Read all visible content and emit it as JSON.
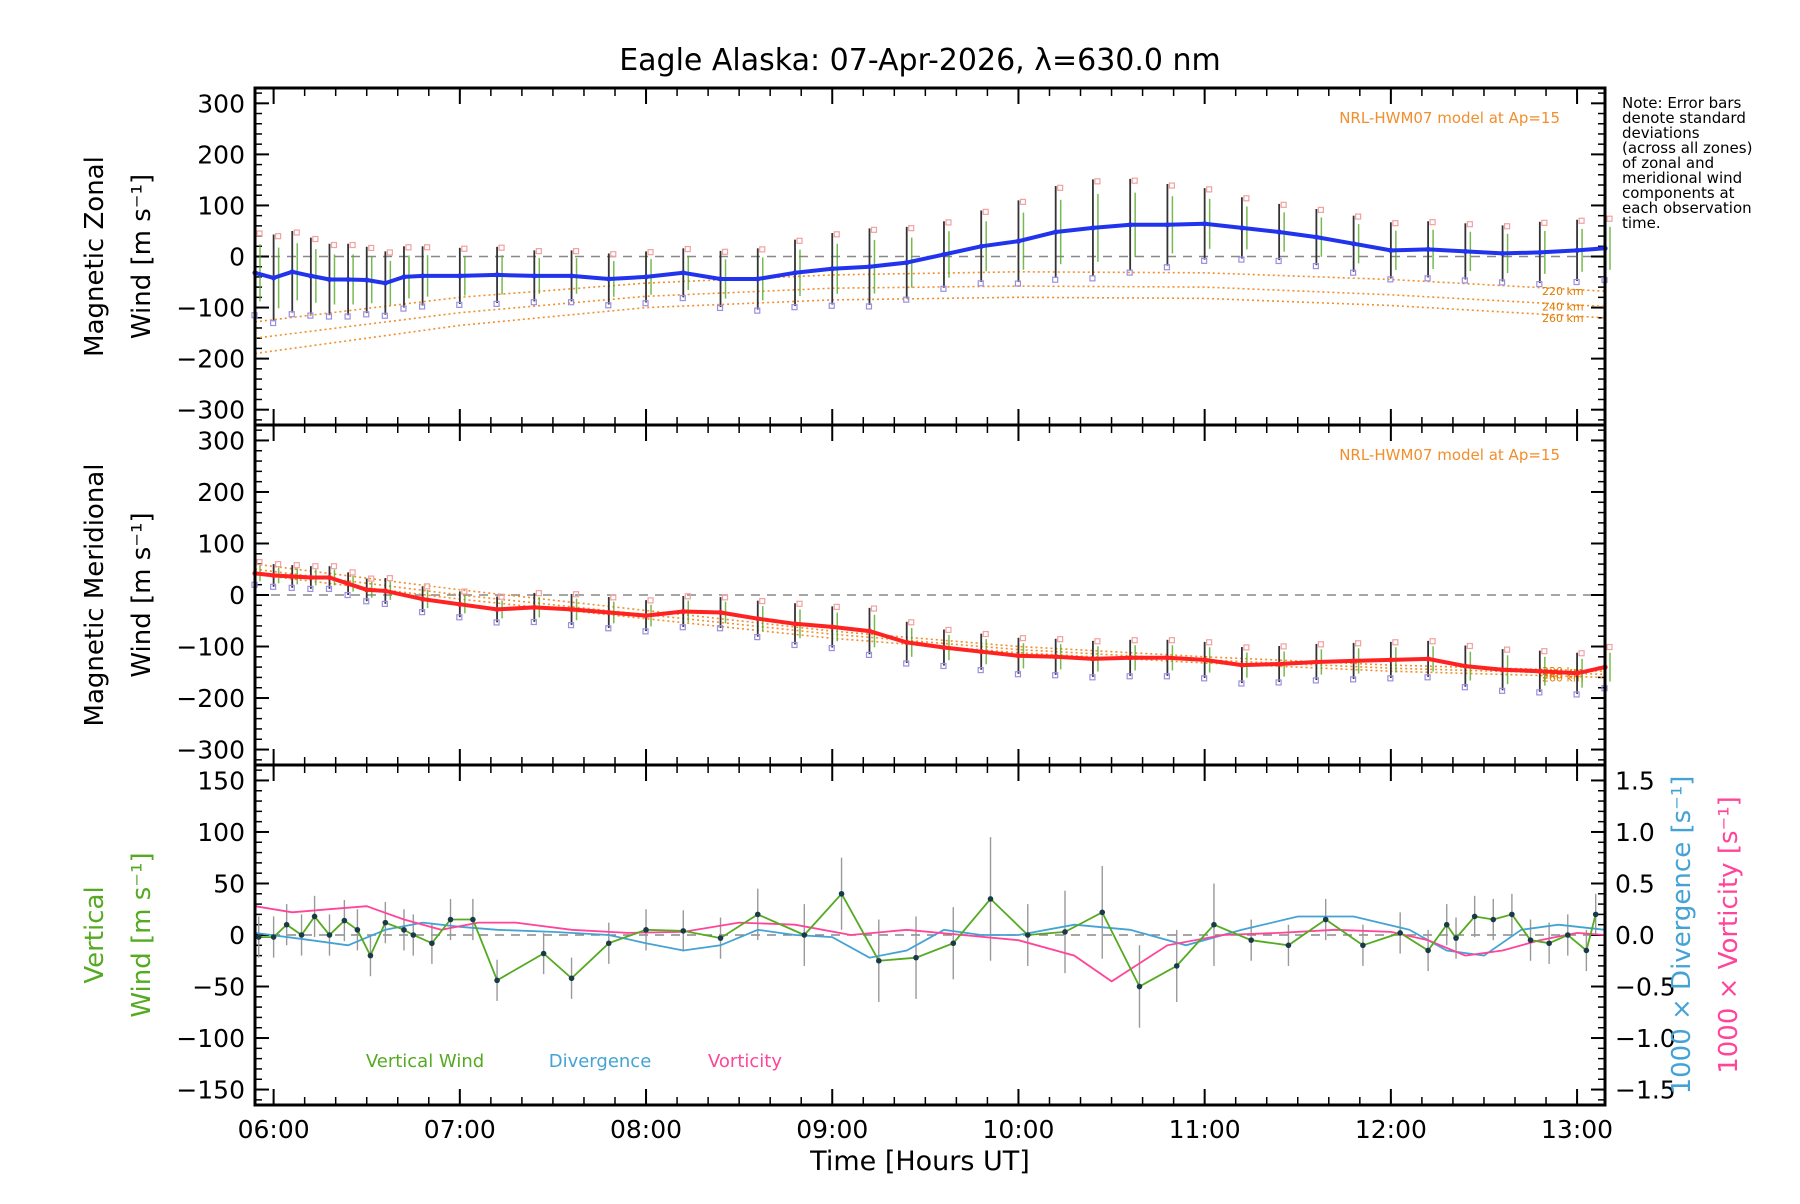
{
  "title": "Eagle Alaska: 07-Apr-2026, λ=630.0 nm",
  "note_lines": [
    "Note: Error bars",
    "denote standard",
    "deviations",
    "(across all zones)",
    "of zonal and",
    "meridional wind",
    "components at",
    "each observation",
    "time."
  ],
  "colors": {
    "zonal": "#2233ee",
    "meridional": "#ff2222",
    "vertical": "#55aa22",
    "divergence": "#44a3d4",
    "vorticity": "#ff4499",
    "model": "#f28e2b",
    "errorbar": "#333333",
    "grid": "#888888"
  },
  "chart_data": {
    "type": "line",
    "xlabel": "Time [Hours UT]",
    "xlim": [
      5.9,
      13.15
    ],
    "xticks": [
      6,
      7,
      8,
      9,
      10,
      11,
      12,
      13
    ],
    "xtick_labels": [
      "06:00",
      "07:00",
      "08:00",
      "09:00",
      "10:00",
      "11:00",
      "12:00",
      "13:00"
    ],
    "panels": [
      {
        "id": "zonal",
        "ylabel_top": "Magnetic Zonal",
        "ylabel_bottom": "Wind [m s⁻¹]",
        "ylim": [
          -330,
          330
        ],
        "yticks": [
          -300,
          -200,
          -100,
          0,
          100,
          200,
          300
        ],
        "ytick_labels": [
          "−300",
          "−200",
          "−100",
          "0",
          "100",
          "200",
          "300"
        ],
        "model_note": "NRL-HWM07 model at Ap=15",
        "model_altitudes": [
          "220 km",
          "240 km",
          "260 km"
        ],
        "series": [
          {
            "name": "Zonal Wind",
            "x": [
              5.9,
              6.0,
              6.1,
              6.2,
              6.3,
              6.4,
              6.5,
              6.6,
              6.7,
              6.8,
              7.0,
              7.2,
              7.4,
              7.6,
              7.8,
              8.0,
              8.2,
              8.4,
              8.6,
              8.8,
              9.0,
              9.2,
              9.4,
              9.6,
              9.8,
              10.0,
              10.2,
              10.4,
              10.6,
              10.8,
              11.0,
              11.2,
              11.4,
              11.6,
              11.8,
              12.0,
              12.2,
              12.4,
              12.6,
              12.8,
              13.0,
              13.15
            ],
            "y": [
              -32,
              -42,
              -30,
              -38,
              -45,
              -45,
              -46,
              -52,
              -40,
              -38,
              -38,
              -36,
              -38,
              -38,
              -44,
              -40,
              -32,
              -44,
              -44,
              -32,
              -24,
              -20,
              -12,
              4,
              20,
              30,
              48,
              56,
              62,
              62,
              64,
              56,
              48,
              38,
              25,
              12,
              14,
              10,
              6,
              8,
              12,
              16
            ],
            "sd": [
              80,
              85,
              80,
              75,
              70,
              70,
              65,
              62,
              60,
              58,
              55,
              55,
              50,
              50,
              50,
              50,
              48,
              55,
              60,
              65,
              70,
              75,
              70,
              65,
              70,
              80,
              90,
              95,
              90,
              80,
              70,
              60,
              55,
              55,
              55,
              55,
              55,
              55,
              55,
              60,
              60,
              60
            ]
          }
        ],
        "models": [
          {
            "name": "220 km",
            "x": [
              5.9,
              7.0,
              8.0,
              9.0,
              10.0,
              11.0,
              12.0,
              13.15
            ],
            "y": [
              -128,
              -80,
              -52,
              -36,
              -30,
              -32,
              -45,
              -68
            ]
          },
          {
            "name": "240 km",
            "x": [
              5.9,
              7.0,
              8.0,
              9.0,
              10.0,
              11.0,
              12.0,
              13.15
            ],
            "y": [
              -160,
              -110,
              -78,
              -62,
              -58,
              -60,
              -75,
              -98
            ]
          },
          {
            "name": "260 km",
            "x": [
              5.9,
              7.0,
              8.0,
              9.0,
              10.0,
              11.0,
              12.0,
              13.15
            ],
            "y": [
              -190,
              -135,
              -100,
              -85,
              -80,
              -82,
              -96,
              -120
            ]
          }
        ]
      },
      {
        "id": "meridional",
        "ylabel_top": "Magnetic Meridional",
        "ylabel_bottom": "Wind [m s⁻¹]",
        "ylim": [
          -330,
          330
        ],
        "yticks": [
          -300,
          -200,
          -100,
          0,
          100,
          200,
          300
        ],
        "ytick_labels": [
          "−300",
          "−200",
          "−100",
          "0",
          "100",
          "200",
          "300"
        ],
        "model_note": "NRL-HWM07 model at Ap=15",
        "model_altitudes": [
          "220 km",
          "240 km",
          "260 km"
        ],
        "series": [
          {
            "name": "Meridional Wind",
            "x": [
              5.9,
              6.0,
              6.1,
              6.2,
              6.3,
              6.4,
              6.5,
              6.6,
              6.8,
              7.0,
              7.2,
              7.4,
              7.6,
              7.8,
              8.0,
              8.2,
              8.4,
              8.6,
              8.8,
              9.0,
              9.2,
              9.4,
              9.6,
              9.8,
              10.0,
              10.2,
              10.4,
              10.6,
              10.8,
              11.0,
              11.2,
              11.4,
              11.6,
              11.8,
              12.0,
              12.2,
              12.4,
              12.6,
              12.8,
              13.0,
              13.15
            ],
            "y": [
              42,
              38,
              36,
              34,
              34,
              22,
              10,
              8,
              -8,
              -18,
              -28,
              -24,
              -28,
              -34,
              -40,
              -32,
              -34,
              -46,
              -56,
              -62,
              -70,
              -92,
              -102,
              -110,
              -118,
              -120,
              -124,
              -122,
              -122,
              -126,
              -136,
              -134,
              -130,
              -128,
              -126,
              -124,
              -138,
              -145,
              -148,
              -152,
              -140
            ],
            "sd": [
              22,
              22,
              22,
              22,
              22,
              22,
              22,
              25,
              25,
              25,
              25,
              28,
              30,
              30,
              30,
              30,
              30,
              35,
              40,
              40,
              45,
              40,
              35,
              35,
              35,
              35,
              35,
              35,
              35,
              35,
              35,
              35,
              35,
              35,
              35,
              35,
              40,
              40,
              40,
              40,
              40
            ]
          }
        ],
        "models": [
          {
            "name": "220 km",
            "x": [
              5.9,
              7.0,
              8.0,
              9.0,
              10.0,
              11.0,
              12.0,
              13.15
            ],
            "y": [
              60,
              10,
              -30,
              -70,
              -100,
              -120,
              -136,
              -148
            ]
          },
          {
            "name": "240 km",
            "x": [
              5.9,
              7.0,
              8.0,
              9.0,
              10.0,
              11.0,
              12.0,
              13.15
            ],
            "y": [
              50,
              0,
              -38,
              -76,
              -106,
              -126,
              -142,
              -154
            ]
          },
          {
            "name": "260 km",
            "x": [
              5.9,
              7.0,
              8.0,
              9.0,
              10.0,
              11.0,
              12.0,
              13.15
            ],
            "y": [
              40,
              -8,
              -46,
              -84,
              -112,
              -132,
              -148,
              -160
            ]
          }
        ]
      },
      {
        "id": "vertical",
        "ylabel_top": "Vertical",
        "ylabel_bottom": "Wind [m s⁻¹]",
        "ylim": [
          -165,
          165
        ],
        "yticks": [
          -150,
          -100,
          -50,
          0,
          50,
          100,
          150
        ],
        "ytick_labels": [
          "−150",
          "−100",
          "−50",
          "0",
          "50",
          "100",
          "150"
        ],
        "y2label_divergence": "1000 × Divergence [s⁻¹]",
        "y2label_vorticity": "1000 × Vorticity [s⁻¹]",
        "y2lim": [
          -1.65,
          1.65
        ],
        "y2ticks": [
          -1.5,
          -1.0,
          -0.5,
          0.0,
          0.5,
          1.0,
          1.5
        ],
        "y2tick_labels": [
          "−1.5",
          "−1.0",
          "−0.5",
          "0.0",
          "0.5",
          "1.0",
          "1.5"
        ],
        "legend": [
          "Vertical Wind",
          "Divergence",
          "Vorticity"
        ],
        "vertical": {
          "x": [
            5.92,
            6.0,
            6.07,
            6.15,
            6.22,
            6.3,
            6.38,
            6.45,
            6.52,
            6.6,
            6.7,
            6.75,
            6.85,
            6.95,
            7.07,
            7.2,
            7.45,
            7.6,
            7.8,
            8.0,
            8.2,
            8.4,
            8.6,
            8.85,
            9.05,
            9.25,
            9.45,
            9.65,
            9.85,
            10.05,
            10.25,
            10.45,
            10.65,
            10.85,
            11.05,
            11.25,
            11.45,
            11.65,
            11.85,
            12.05,
            12.2,
            12.3,
            12.35,
            12.45,
            12.55,
            12.65,
            12.75,
            12.85,
            12.95,
            13.05,
            13.1
          ],
          "y": [
            -2,
            -2,
            10,
            0,
            18,
            0,
            14,
            5,
            -20,
            12,
            5,
            0,
            -8,
            15,
            15,
            -44,
            -18,
            -42,
            -8,
            5,
            4,
            -3,
            20,
            0,
            40,
            -25,
            -22,
            -8,
            35,
            0,
            3,
            22,
            -50,
            -30,
            10,
            -5,
            -10,
            15,
            -10,
            2,
            -15,
            10,
            -3,
            18,
            15,
            20,
            -5,
            -8,
            0,
            -15,
            20
          ],
          "sd": [
            20,
            20,
            20,
            20,
            20,
            20,
            20,
            20,
            20,
            20,
            20,
            20,
            20,
            20,
            20,
            20,
            20,
            20,
            20,
            20,
            20,
            20,
            25,
            30,
            35,
            40,
            40,
            35,
            60,
            30,
            40,
            45,
            40,
            35,
            40,
            20,
            20,
            20,
            20,
            20,
            20,
            20,
            20,
            20,
            20,
            20,
            20,
            20,
            20,
            20,
            20
          ]
        },
        "divergence": {
          "x": [
            5.9,
            6.2,
            6.4,
            6.6,
            6.8,
            7.0,
            7.2,
            7.5,
            7.8,
            8.0,
            8.2,
            8.4,
            8.6,
            8.8,
            9.0,
            9.2,
            9.4,
            9.6,
            9.8,
            10.0,
            10.3,
            10.6,
            10.9,
            11.2,
            11.5,
            11.8,
            12.1,
            12.3,
            12.5,
            12.7,
            12.9,
            13.15
          ],
          "y": [
            0.02,
            -0.05,
            -0.1,
            0.05,
            0.12,
            0.08,
            0.05,
            0.03,
            0.0,
            -0.08,
            -0.15,
            -0.1,
            0.05,
            0.0,
            -0.02,
            -0.22,
            -0.15,
            0.05,
            0.0,
            0.0,
            0.1,
            0.05,
            -0.1,
            0.05,
            0.18,
            0.18,
            0.05,
            -0.15,
            -0.2,
            0.05,
            0.1,
            0.05
          ]
        },
        "vorticity": {
          "x": [
            5.9,
            6.1,
            6.3,
            6.5,
            6.7,
            6.9,
            7.1,
            7.3,
            7.6,
            7.9,
            8.2,
            8.5,
            8.8,
            9.1,
            9.4,
            9.7,
            10.0,
            10.3,
            10.5,
            10.8,
            11.1,
            11.4,
            11.7,
            12.0,
            12.2,
            12.4,
            12.6,
            12.8,
            13.0,
            13.15
          ],
          "y": [
            0.28,
            0.22,
            0.25,
            0.28,
            0.15,
            0.05,
            0.12,
            0.12,
            0.05,
            0.02,
            0.03,
            0.12,
            0.1,
            0.0,
            0.05,
            0.0,
            -0.05,
            -0.2,
            -0.45,
            -0.1,
            0.0,
            0.02,
            0.05,
            0.03,
            -0.05,
            -0.2,
            -0.15,
            -0.05,
            0.02,
            0.0
          ]
        }
      }
    ]
  }
}
